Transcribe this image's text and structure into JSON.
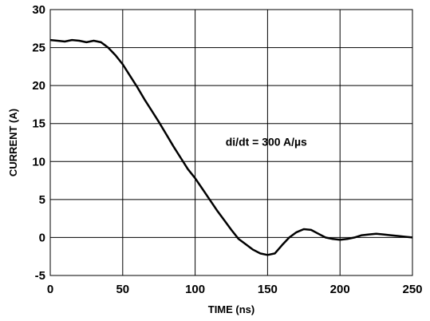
{
  "chart_data": {
    "type": "line",
    "title": "",
    "xlabel": "TIME (ns)",
    "ylabel": "CURRENT (A)",
    "xlim": [
      0,
      250
    ],
    "ylim": [
      -5,
      30
    ],
    "xticks": [
      "0",
      "50",
      "100",
      "150",
      "200",
      "250"
    ],
    "yticks": [
      "-5",
      "0",
      "5",
      "10",
      "15",
      "20",
      "25",
      "30"
    ],
    "grid": true,
    "annotation": "di/dt = 300 A/µs",
    "series": [
      {
        "x": [
          0,
          5,
          10,
          15,
          20,
          25,
          30,
          35,
          40,
          45,
          50,
          55,
          60,
          65,
          70,
          75,
          80,
          85,
          90,
          95,
          100,
          105,
          110,
          115,
          120,
          125,
          130,
          135,
          140,
          145,
          150,
          155,
          160,
          165,
          170,
          175,
          180,
          185,
          190,
          195,
          200,
          205,
          210,
          215,
          220,
          225,
          230,
          235,
          240,
          245,
          250
        ],
        "y": [
          26.0,
          25.9,
          25.8,
          26.0,
          25.9,
          25.7,
          25.9,
          25.7,
          25.0,
          24.0,
          22.8,
          21.3,
          19.8,
          18.2,
          16.7,
          15.2,
          13.6,
          12.0,
          10.5,
          9.0,
          7.8,
          6.4,
          5.0,
          3.6,
          2.3,
          1.0,
          -0.2,
          -0.9,
          -1.6,
          -2.1,
          -2.3,
          -2.1,
          -1.0,
          0.0,
          0.7,
          1.1,
          1.0,
          0.5,
          0.0,
          -0.2,
          -0.3,
          -0.2,
          0.0,
          0.3,
          0.4,
          0.5,
          0.4,
          0.3,
          0.2,
          0.1,
          0.0
        ]
      }
    ]
  }
}
